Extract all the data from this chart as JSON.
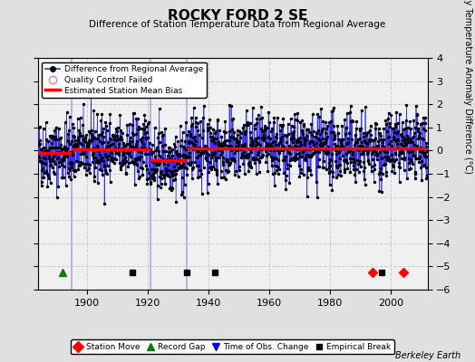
{
  "title": "ROCKY FORD 2 SE",
  "subtitle": "Difference of Station Temperature Data from Regional Average",
  "ylabel": "Monthly Temperature Anomaly Difference (°C)",
  "xlim": [
    1884,
    2012
  ],
  "ylim": [
    -6,
    4
  ],
  "yticks": [
    -6,
    -5,
    -4,
    -3,
    -2,
    -1,
    0,
    1,
    2,
    3,
    4
  ],
  "xticks": [
    1900,
    1920,
    1940,
    1960,
    1980,
    2000
  ],
  "fig_bg_color": "#e0e0e0",
  "plot_bg_color": "#f0f0f0",
  "grid_color": "#cccccc",
  "data_line_color": "#3333ff",
  "data_marker_color": "black",
  "bias_line_color": "red",
  "vline_color": "#aaaaee",
  "seed": 42,
  "start_year": 1884,
  "end_year": 2011,
  "segments": [
    {
      "start": 1884.0,
      "end": 1895.0,
      "bias": -0.12
    },
    {
      "start": 1895.0,
      "end": 1921.0,
      "bias": 0.05
    },
    {
      "start": 1921.0,
      "end": 1933.0,
      "bias": -0.42
    },
    {
      "start": 1933.0,
      "end": 2012.0,
      "bias": 0.08
    }
  ],
  "vertical_lines": [
    1895,
    1921,
    1933
  ],
  "station_moves": [
    1994,
    2004
  ],
  "record_gaps": [
    1892
  ],
  "empirical_breaks": [
    1915,
    1933,
    1942,
    1997
  ],
  "obs_changes": [],
  "marker_y": -5.25,
  "footnote": "Berkeley Earth",
  "noise_std": 0.72
}
